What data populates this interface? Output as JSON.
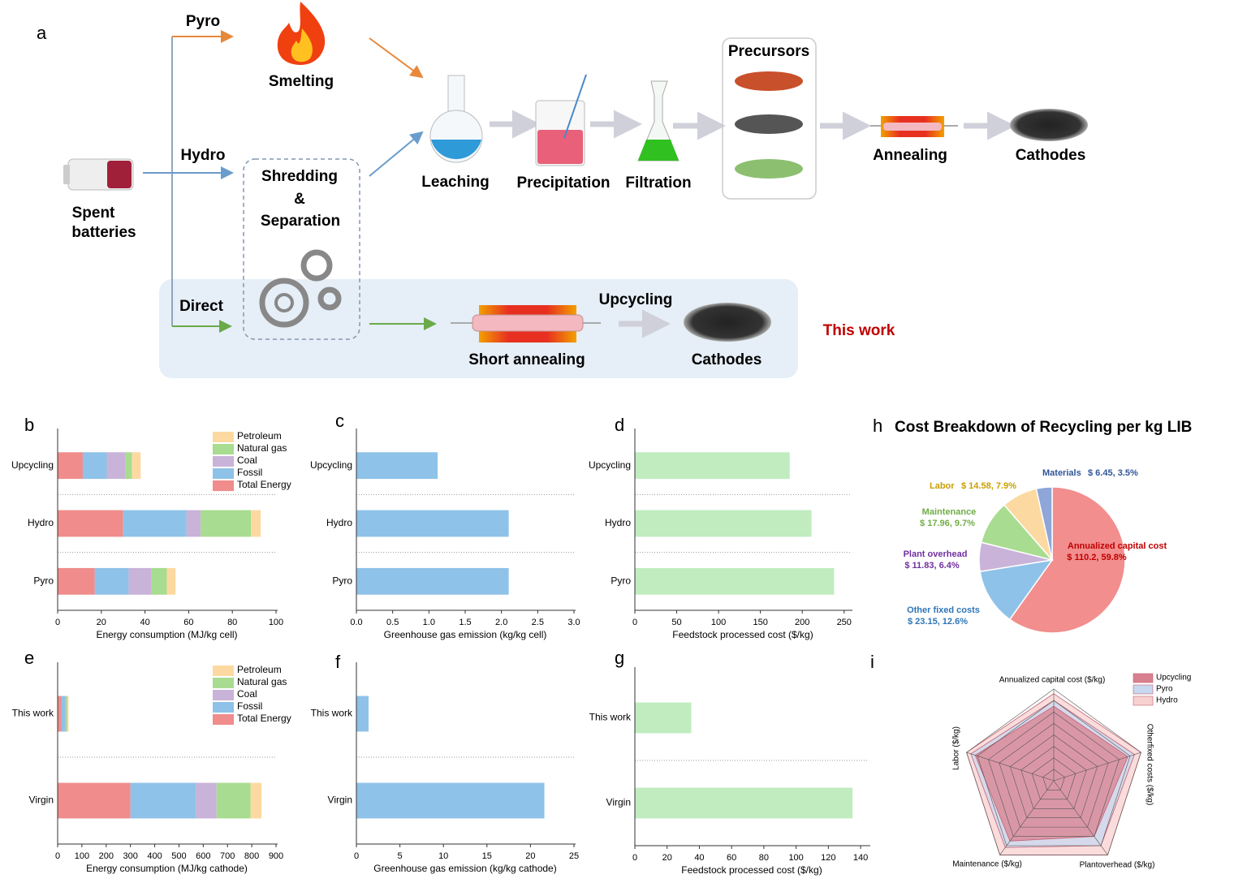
{
  "diagram": {
    "panel": "a",
    "pyro": "Pyro",
    "smelting": "Smelting",
    "hydro": "Hydro",
    "spent": "Spent",
    "batteries": "batteries",
    "shredding": "Shredding",
    "amp": "&",
    "separation": "Separation",
    "leaching": "Leaching",
    "precipitation": "Precipitation",
    "filtration": "Filtration",
    "precursors": "Precursors",
    "annealing": "Annealing",
    "cathodes": "Cathodes",
    "direct": "Direct",
    "upcycling": "Upcycling",
    "short_annealing": "Short annealing",
    "cathodes_direct": "Cathodes",
    "this_work": "This work"
  },
  "chart_data": [
    {
      "type": "stacked_hbar",
      "panel": "b",
      "xlabel": "Energy consumption (MJ/kg cell)",
      "categories": [
        "Upcycling",
        "Hydro",
        "Pyro"
      ],
      "series": [
        {
          "name": "Total Energy",
          "color": "#f08c8c",
          "values": [
            11.5,
            30,
            17
          ]
        },
        {
          "name": "Fossil",
          "color": "#8ec2e8",
          "values": [
            11,
            29,
            15.5
          ]
        },
        {
          "name": "Coal",
          "color": "#c9b3d9",
          "values": [
            8.5,
            6.5,
            10.5
          ]
        },
        {
          "name": "Natural gas",
          "color": "#a8dc90",
          "values": [
            3,
            23,
            7
          ]
        },
        {
          "name": "Petroleum",
          "color": "#fcd9a0",
          "values": [
            4,
            4.5,
            4
          ]
        }
      ],
      "xlim": [
        0,
        100
      ],
      "xticks": [
        0,
        20,
        40,
        60,
        80,
        100
      ]
    },
    {
      "type": "hbar",
      "panel": "c",
      "xlabel": "Greenhouse gas emission (kg/kg cell)",
      "categories": [
        "Upcycling",
        "Hydro",
        "Pyro"
      ],
      "values": [
        1.12,
        2.1,
        2.1
      ],
      "color": "#8ec2e8",
      "xlim": [
        0,
        3
      ],
      "xticks": [
        {
          "value": 0,
          "label": "0.0"
        },
        0.5,
        {
          "value": 1,
          "label": "1.0"
        },
        1.5,
        {
          "value": 2,
          "label": "2.0"
        },
        2.5,
        {
          "value": 3,
          "label": "3.0"
        }
      ]
    },
    {
      "type": "hbar",
      "panel": "d",
      "xlabel": "Feedstock processed cost ($/kg)",
      "categories": [
        "Upcycling",
        "Hydro",
        "Pyro"
      ],
      "values": [
        185,
        211,
        238
      ],
      "color": "#c0ecc0",
      "xlim": [
        0,
        258
      ],
      "xticks": [
        0,
        50,
        100,
        150,
        200,
        250
      ]
    },
    {
      "type": "stacked_hbar",
      "panel": "e",
      "xlabel": "Energy consumption (MJ/kg cathode)",
      "categories": [
        "This work",
        "Virgin"
      ],
      "series": [
        {
          "name": "Total Energy",
          "color": "#f08c8c",
          "values": [
            15,
            300
          ]
        },
        {
          "name": "Fossil",
          "color": "#8ec2e8",
          "values": [
            15,
            270
          ]
        },
        {
          "name": "Coal",
          "color": "#c9b3d9",
          "values": [
            5,
            85
          ]
        },
        {
          "name": "Natural gas",
          "color": "#a8dc90",
          "values": [
            5,
            140
          ]
        },
        {
          "name": "Petroleum",
          "color": "#fcd9a0",
          "values": [
            5,
            45
          ]
        }
      ],
      "xlim": [
        0,
        900
      ],
      "xticks": [
        0,
        100,
        200,
        300,
        400,
        500,
        600,
        700,
        800,
        900
      ]
    },
    {
      "type": "hbar",
      "panel": "f",
      "xlabel": "Greenhouse gas emission (kg/kg cathode)",
      "categories": [
        "This work",
        "Virgin"
      ],
      "values": [
        1.4,
        21.6
      ],
      "color": "#8ec2e8",
      "xlim": [
        0,
        25
      ],
      "xticks": [
        0,
        5,
        10,
        15,
        20,
        25
      ]
    },
    {
      "type": "hbar",
      "panel": "g",
      "xlabel": "Feedstock processed cost ($/kg)",
      "categories": [
        "This work",
        "Virgin"
      ],
      "values": [
        35,
        135
      ],
      "color": "#c0ecc0",
      "xlim": [
        0,
        145
      ],
      "xticks": [
        0,
        20,
        40,
        60,
        80,
        100,
        120,
        140
      ]
    },
    {
      "type": "pie",
      "panel": "h",
      "title": "Cost Breakdown of Recycling per kg LIB",
      "categories": [
        "Annualized capital cost",
        "Other fixed costs",
        "Plant overhead",
        "Maintenance",
        "Labor",
        "Materials"
      ],
      "values": [
        59.8,
        12.6,
        6.4,
        9.7,
        7.9,
        3.5
      ],
      "value_labels": [
        "$ 110.2, 59.8%",
        "$ 23.15, 12.6%",
        "$ 11.83, 6.4%",
        "$ 17.96, 9.7%",
        "$ 14.58, 7.9%",
        "$ 6.45, 3.5%"
      ],
      "colors": [
        "#f28e8e",
        "#8ec2e8",
        "#c9b3d9",
        "#a8dc90",
        "#fcd9a0",
        "#8ea6d8"
      ],
      "label_colors": [
        "#c00000",
        "#2e75b6",
        "#7030a0",
        "#70ad47",
        "#c9a000",
        "#2f5597"
      ]
    },
    {
      "type": "radar",
      "panel": "i",
      "axes": [
        "Annualized capital cost ($/kg)",
        "Otherfixed costs ($/kg)",
        "Plantoverhead ($/kg)",
        "Maintenance ($/kg)",
        "Labor ($/kg)"
      ],
      "series": [
        {
          "name": "Hydro",
          "color": "#f8d0d0",
          "values": [
            7.6,
            8,
            8,
            8,
            8
          ]
        },
        {
          "name": "Pyro",
          "color": "#c8d8f0",
          "values": [
            7,
            7.4,
            7,
            7.2,
            7.6
          ]
        },
        {
          "name": "Upcycling",
          "color": "#d9808f",
          "values": [
            6.5,
            6.8,
            6,
            6.5,
            7.2
          ]
        }
      ],
      "rlim": [
        0,
        8
      ],
      "rticks": [
        1,
        2,
        3,
        4,
        5,
        6,
        7,
        8
      ]
    }
  ]
}
